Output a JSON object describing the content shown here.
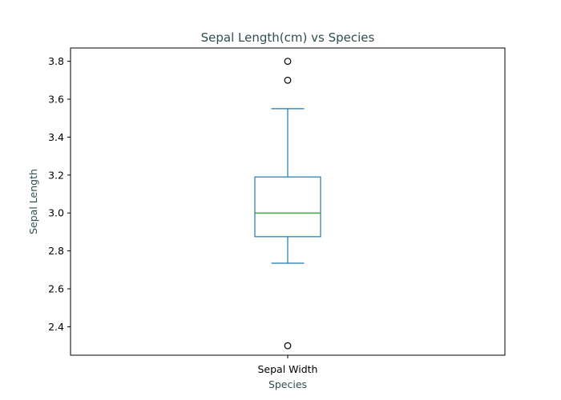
{
  "chart_data": {
    "type": "box",
    "title": "Sepal Length(cm) vs Species",
    "xlabel": "Species",
    "ylabel": "Sepal Length",
    "categories": [
      "Sepal Width"
    ],
    "ylim": [
      2.25,
      3.87
    ],
    "yticks": [
      "2.4",
      "2.6",
      "2.8",
      "3.0",
      "3.2",
      "3.4",
      "3.6",
      "3.8"
    ],
    "grid": false,
    "boxes": [
      {
        "category": "Sepal Width",
        "whisker_low": 2.735,
        "q1": 2.875,
        "median": 3.0,
        "q3": 3.19,
        "whisker_high": 3.55,
        "outliers": [
          3.8,
          3.7,
          2.3
        ]
      }
    ],
    "colors": {
      "box": "#1f77b4",
      "median": "#2ca02c",
      "text": "#2f4f4f",
      "outlier": "#000000"
    }
  }
}
